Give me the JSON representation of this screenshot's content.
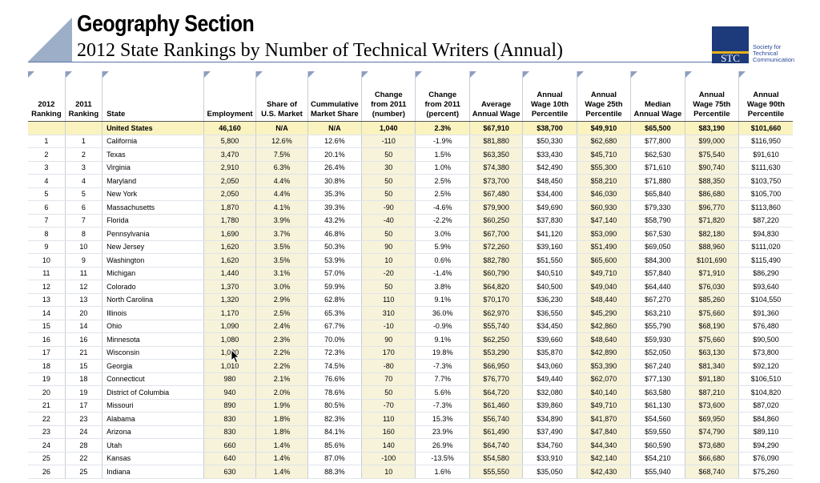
{
  "header": {
    "title": "Geography Section",
    "subtitle": "2012 State Rankings by Number of Technical Writers (Annual)"
  },
  "logo": {
    "text": "STC",
    "org_line1": "Society for",
    "org_line2": "Technical",
    "org_line3": "Communication",
    "colors": {
      "box": "#1d3a7a",
      "stripe": "#e8b21a",
      "text": "#2a4a9a"
    }
  },
  "table": {
    "columns": [
      [
        "2012",
        "Ranking"
      ],
      [
        "2011",
        "Ranking"
      ],
      [
        "State"
      ],
      [
        "Employment"
      ],
      [
        "Share of",
        "U.S. Market"
      ],
      [
        "Cummulative",
        "Market Share"
      ],
      [
        "Change",
        "from 2011",
        "(number)"
      ],
      [
        "Change",
        "from 2011",
        "(percent)"
      ],
      [
        "Average",
        "Annual Wage"
      ],
      [
        "Annual",
        "Wage 10th",
        "Percentile"
      ],
      [
        "Annual",
        "Wage 25th",
        "Percentile"
      ],
      [
        "Median",
        "Annual Wage"
      ],
      [
        "Annual",
        "Wage 75th",
        "Percentile"
      ],
      [
        "Annual",
        "Wage 90th",
        "Percentile"
      ]
    ],
    "us_row": [
      "",
      "",
      "United States",
      "46,160",
      "N/A",
      "N/A",
      "1,040",
      "2.3%",
      "$67,910",
      "$38,700",
      "$49,910",
      "$65,500",
      "$83,190",
      "$101,660"
    ],
    "rows": [
      [
        "1",
        "1",
        "California",
        "5,800",
        "12.6%",
        "12.6%",
        "-110",
        "-1.9%",
        "$81,880",
        "$50,330",
        "$62,680",
        "$77,800",
        "$99,000",
        "$116,950"
      ],
      [
        "2",
        "2",
        "Texas",
        "3,470",
        "7.5%",
        "20.1%",
        "50",
        "1.5%",
        "$63,350",
        "$33,430",
        "$45,710",
        "$62,530",
        "$75,540",
        "$91,610"
      ],
      [
        "3",
        "3",
        "Virginia",
        "2,910",
        "6.3%",
        "26.4%",
        "30",
        "1.0%",
        "$74,380",
        "$42,490",
        "$55,300",
        "$71,610",
        "$90,740",
        "$111,630"
      ],
      [
        "4",
        "4",
        "Maryland",
        "2,050",
        "4.4%",
        "30.8%",
        "50",
        "2.5%",
        "$73,700",
        "$48,450",
        "$58,210",
        "$71,880",
        "$88,350",
        "$103,750"
      ],
      [
        "5",
        "5",
        "New York",
        "2,050",
        "4.4%",
        "35.3%",
        "50",
        "2.5%",
        "$67,480",
        "$34,400",
        "$46,030",
        "$65,840",
        "$86,680",
        "$105,700"
      ],
      [
        "6",
        "6",
        "Massachusetts",
        "1,870",
        "4.1%",
        "39.3%",
        "-90",
        "-4.6%",
        "$79,900",
        "$49,690",
        "$60,930",
        "$79,330",
        "$96,770",
        "$113,860"
      ],
      [
        "7",
        "7",
        "Florida",
        "1,780",
        "3.9%",
        "43.2%",
        "-40",
        "-2.2%",
        "$60,250",
        "$37,830",
        "$47,140",
        "$58,790",
        "$71,820",
        "$87,220"
      ],
      [
        "8",
        "8",
        "Pennsylvania",
        "1,690",
        "3.7%",
        "46.8%",
        "50",
        "3.0%",
        "$67,700",
        "$41,120",
        "$53,090",
        "$67,530",
        "$82,180",
        "$94,830"
      ],
      [
        "9",
        "10",
        "New Jersey",
        "1,620",
        "3.5%",
        "50.3%",
        "90",
        "5.9%",
        "$72,260",
        "$39,160",
        "$51,490",
        "$69,050",
        "$88,960",
        "$111,020"
      ],
      [
        "10",
        "9",
        "Washington",
        "1,620",
        "3.5%",
        "53.9%",
        "10",
        "0.6%",
        "$82,780",
        "$51,550",
        "$65,600",
        "$84,300",
        "$101,690",
        "$115,490"
      ],
      [
        "11",
        "11",
        "Michigan",
        "1,440",
        "3.1%",
        "57.0%",
        "-20",
        "-1.4%",
        "$60,790",
        "$40,510",
        "$49,710",
        "$57,840",
        "$71,910",
        "$86,290"
      ],
      [
        "12",
        "12",
        "Colorado",
        "1,370",
        "3.0%",
        "59.9%",
        "50",
        "3.8%",
        "$64,820",
        "$40,500",
        "$49,040",
        "$64,440",
        "$76,030",
        "$93,640"
      ],
      [
        "13",
        "13",
        "North Carolina",
        "1,320",
        "2.9%",
        "62.8%",
        "110",
        "9.1%",
        "$70,170",
        "$36,230",
        "$48,440",
        "$67,270",
        "$85,260",
        "$104,550"
      ],
      [
        "14",
        "20",
        "Illinois",
        "1,170",
        "2.5%",
        "65.3%",
        "310",
        "36.0%",
        "$62,970",
        "$36,550",
        "$45,290",
        "$63,210",
        "$75,660",
        "$91,360"
      ],
      [
        "15",
        "14",
        "Ohio",
        "1,090",
        "2.4%",
        "67.7%",
        "-10",
        "-0.9%",
        "$55,740",
        "$34,450",
        "$42,860",
        "$55,790",
        "$68,190",
        "$76,480"
      ],
      [
        "16",
        "16",
        "Minnesota",
        "1,080",
        "2.3%",
        "70.0%",
        "90",
        "9.1%",
        "$62,250",
        "$39,660",
        "$48,640",
        "$59,930",
        "$75,660",
        "$90,500"
      ],
      [
        "17",
        "21",
        "Wisconsin",
        "1,030",
        "2.2%",
        "72.3%",
        "170",
        "19.8%",
        "$53,290",
        "$35,870",
        "$42,890",
        "$52,050",
        "$63,130",
        "$73,800"
      ],
      [
        "18",
        "15",
        "Georgia",
        "1,010",
        "2.2%",
        "74.5%",
        "-80",
        "-7.3%",
        "$66,950",
        "$43,060",
        "$53,390",
        "$67,240",
        "$81,340",
        "$92,120"
      ],
      [
        "19",
        "18",
        "Connecticut",
        "980",
        "2.1%",
        "76.6%",
        "70",
        "7.7%",
        "$76,770",
        "$49,440",
        "$62,070",
        "$77,130",
        "$91,180",
        "$106,510"
      ],
      [
        "20",
        "19",
        "District of Columbia",
        "940",
        "2.0%",
        "78.6%",
        "50",
        "5.6%",
        "$64,720",
        "$32,080",
        "$40,140",
        "$63,580",
        "$87,210",
        "$104,820"
      ],
      [
        "21",
        "17",
        "Missouri",
        "890",
        "1.9%",
        "80.5%",
        "-70",
        "-7.3%",
        "$61,460",
        "$39,860",
        "$49,710",
        "$61,130",
        "$73,600",
        "$87,020"
      ],
      [
        "22",
        "23",
        "Alabama",
        "830",
        "1.8%",
        "82.3%",
        "110",
        "15.3%",
        "$56,740",
        "$34,890",
        "$41,870",
        "$54,560",
        "$69,950",
        "$84,860"
      ],
      [
        "23",
        "24",
        "Arizona",
        "830",
        "1.8%",
        "84.1%",
        "160",
        "23.9%",
        "$61,490",
        "$37,490",
        "$47,840",
        "$59,550",
        "$74,790",
        "$89,110"
      ],
      [
        "24",
        "28",
        "Utah",
        "660",
        "1.4%",
        "85.6%",
        "140",
        "26.9%",
        "$64,740",
        "$34,760",
        "$44,340",
        "$60,590",
        "$73,680",
        "$94,290"
      ],
      [
        "25",
        "22",
        "Kansas",
        "640",
        "1.4%",
        "87.0%",
        "-100",
        "-13.5%",
        "$54,580",
        "$33,910",
        "$42,140",
        "$54,210",
        "$66,680",
        "$76,090"
      ],
      [
        "26",
        "25",
        "Indiana",
        "630",
        "1.4%",
        "88.3%",
        "10",
        "1.6%",
        "$55,550",
        "$35,050",
        "$42,430",
        "$55,940",
        "$68,740",
        "$75,260"
      ]
    ],
    "column_colors": {
      "shaded": "#f7f3da",
      "us_row": "#fbf3bf",
      "header_marker": "#8d9fc0"
    }
  }
}
